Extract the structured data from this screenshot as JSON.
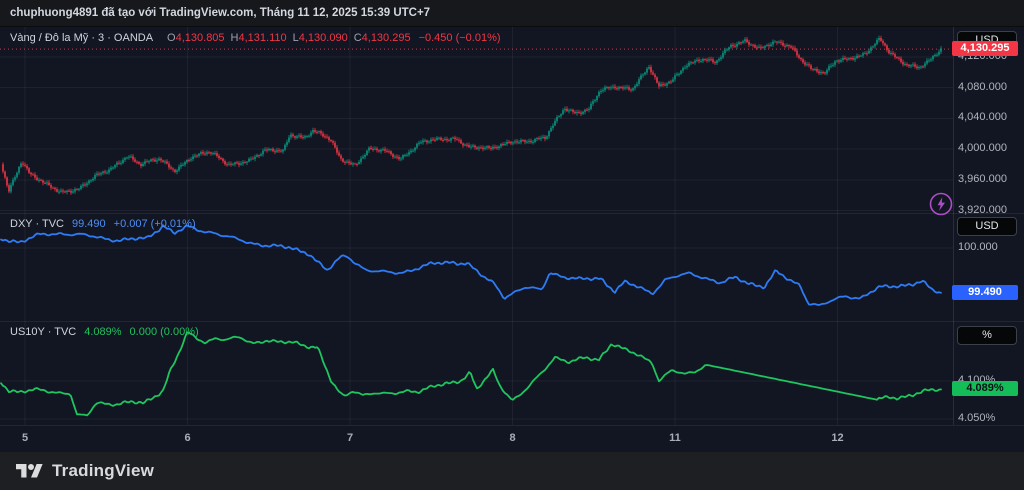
{
  "attribution": "chuphuong4891 đã tạo với TradingView.com, Tháng 11 12, 2025 15:39 UTC+7",
  "footer": {
    "brand": "TradingView"
  },
  "colors": {
    "candle_up": "#089981",
    "candle_down": "#f23645",
    "dxy_line": "#2e7bf6",
    "us10y_line": "#1fc55e",
    "grid": "rgba(255,255,255,0.055)",
    "gold_price_line": "#f23645"
  },
  "time_axis": {
    "ticks": [
      {
        "label": "5",
        "session": 0
      },
      {
        "label": "6",
        "session": 1
      },
      {
        "label": "7",
        "session": 2
      },
      {
        "label": "8",
        "session": 3
      },
      {
        "label": "11",
        "session": 4
      },
      {
        "label": "12",
        "session": 5
      }
    ]
  },
  "panels": [
    {
      "legend": {
        "title": "Vàng / Đô la Mỹ · 3 · OANDA",
        "ohlc": [
          {
            "k": "O",
            "v": "4,130.805"
          },
          {
            "k": "H",
            "v": "4,131.110"
          },
          {
            "k": "L",
            "v": "4,130.090"
          },
          {
            "k": "C",
            "v": "4,130.295"
          }
        ],
        "change": "−0.450 (−0.01%)"
      },
      "scale": {
        "unit_button": "USD",
        "ticks": [
          {
            "value": 4120,
            "label": "4,120.000"
          },
          {
            "value": 4080,
            "label": "4,080.000"
          },
          {
            "value": 4040,
            "label": "4,040.000"
          },
          {
            "value": 4000,
            "label": "4,000.000"
          },
          {
            "value": 3960,
            "label": "3,960.000"
          },
          {
            "value": 3920,
            "label": "3,920.000"
          }
        ],
        "badge": {
          "value": 4130.295,
          "label": "4,130.295",
          "bg": "#f23645",
          "fg": "#ffffff"
        }
      }
    },
    {
      "legend": {
        "title": "DXY · TVC",
        "value": "99.490",
        "change": "+0.007 (+0.01%)"
      },
      "scale": {
        "unit_button": "USD",
        "ticks": [
          {
            "value": 100,
            "label": "100.000"
          }
        ],
        "badge": {
          "value": 99.49,
          "label": "99.490",
          "bg": "#2962ff",
          "fg": "#ffffff"
        }
      }
    },
    {
      "legend": {
        "title": "US10Y · TVC",
        "value": "4.089%",
        "change": "0.000 (0.00%)"
      },
      "scale": {
        "unit_button": "%",
        "ticks": [
          {
            "value": 4.1,
            "label": "4.100%"
          },
          {
            "value": 4.05,
            "label": "4.050%"
          }
        ],
        "badge": {
          "value": 4.089,
          "label": "4.089%",
          "bg": "#14bd57",
          "fg": "#0c1018"
        }
      }
    }
  ],
  "chart_data": [
    {
      "type": "candlestick",
      "title": "Vàng / Đô la Mỹ · 3 · OANDA",
      "symbol": "XAU/USD (Vàng / Đô la Mỹ)",
      "exchange": "OANDA",
      "interval": "3",
      "unit": "USD",
      "last": {
        "open": 4130.805,
        "high": 4131.11,
        "low": 4130.09,
        "close": 4130.295,
        "change": -0.45,
        "change_pct": -0.01
      },
      "x_unit": "session index: 0=Nov 5, 1=Nov 6, 2=Nov 7, 3=Nov 8, 4=Nov 11, 5=Nov 12 (2025)",
      "ylim": [
        3917,
        4159
      ],
      "grid": true,
      "series": [
        [
          -0.15,
          3984
        ],
        [
          -0.1,
          3947
        ],
        [
          -0.02,
          3986
        ],
        [
          0.03,
          3967
        ],
        [
          0.12,
          3954
        ],
        [
          0.22,
          3945
        ],
        [
          0.34,
          3950
        ],
        [
          0.43,
          3963
        ],
        [
          0.52,
          3973
        ],
        [
          0.63,
          3993
        ],
        [
          0.71,
          3980
        ],
        [
          0.83,
          3986
        ],
        [
          0.92,
          3973
        ],
        [
          1.02,
          3990
        ],
        [
          1.14,
          3995
        ],
        [
          1.25,
          3981
        ],
        [
          1.39,
          3986
        ],
        [
          1.48,
          3997
        ],
        [
          1.59,
          3999
        ],
        [
          1.63,
          4021
        ],
        [
          1.72,
          4015
        ],
        [
          1.77,
          4023
        ],
        [
          1.88,
          4012
        ],
        [
          1.94,
          3989
        ],
        [
          2.03,
          3980
        ],
        [
          2.12,
          3999
        ],
        [
          2.22,
          3997
        ],
        [
          2.31,
          3989
        ],
        [
          2.43,
          4008
        ],
        [
          2.55,
          4012
        ],
        [
          2.65,
          4015
        ],
        [
          2.74,
          4003
        ],
        [
          2.86,
          3999
        ],
        [
          3.0,
          4012
        ],
        [
          3.11,
          4010
        ],
        [
          3.2,
          4013
        ],
        [
          3.26,
          4035
        ],
        [
          3.32,
          4055
        ],
        [
          3.39,
          4048
        ],
        [
          3.47,
          4051
        ],
        [
          3.54,
          4075
        ],
        [
          3.63,
          4082
        ],
        [
          3.74,
          4080
        ],
        [
          3.84,
          4106
        ],
        [
          3.9,
          4080
        ],
        [
          3.98,
          4090
        ],
        [
          4.06,
          4110
        ],
        [
          4.15,
          4116
        ],
        [
          4.25,
          4112
        ],
        [
          4.34,
          4136
        ],
        [
          4.43,
          4142
        ],
        [
          4.52,
          4129
        ],
        [
          4.62,
          4139
        ],
        [
          4.71,
          4136
        ],
        [
          4.77,
          4119
        ],
        [
          4.84,
          4103
        ],
        [
          4.92,
          4097
        ],
        [
          4.99,
          4116
        ],
        [
          5.08,
          4120
        ],
        [
          5.17,
          4123
        ],
        [
          5.26,
          4142
        ],
        [
          5.32,
          4126
        ],
        [
          5.42,
          4112
        ],
        [
          5.5,
          4106
        ],
        [
          5.57,
          4114
        ],
        [
          5.64,
          4130.3
        ]
      ]
    },
    {
      "type": "line",
      "title": "DXY · TVC",
      "symbol": "DXY",
      "exchange": "TVC",
      "unit": "USD",
      "last": 99.49,
      "change": 0.007,
      "change_pct": 0.01,
      "ylim": [
        99.17,
        100.4
      ],
      "grid": true,
      "series": [
        [
          -0.15,
          100.11
        ],
        [
          -0.03,
          100.07
        ],
        [
          0.09,
          100.15
        ],
        [
          0.22,
          100.17
        ],
        [
          0.34,
          100.15
        ],
        [
          0.46,
          100.12
        ],
        [
          0.58,
          100.09
        ],
        [
          0.75,
          100.11
        ],
        [
          0.85,
          100.26
        ],
        [
          0.92,
          100.17
        ],
        [
          1.0,
          100.24
        ],
        [
          1.08,
          100.2
        ],
        [
          1.16,
          100.18
        ],
        [
          1.26,
          100.12
        ],
        [
          1.38,
          100.06
        ],
        [
          1.51,
          100.03
        ],
        [
          1.63,
          100.0
        ],
        [
          1.75,
          99.94
        ],
        [
          1.86,
          99.74
        ],
        [
          1.94,
          99.89
        ],
        [
          1.98,
          99.91
        ],
        [
          2.1,
          99.75
        ],
        [
          2.22,
          99.72
        ],
        [
          2.31,
          99.72
        ],
        [
          2.43,
          99.78
        ],
        [
          2.51,
          99.82
        ],
        [
          2.62,
          99.84
        ],
        [
          2.72,
          99.83
        ],
        [
          2.82,
          99.67
        ],
        [
          2.89,
          99.59
        ],
        [
          2.95,
          99.44
        ],
        [
          3.0,
          99.49
        ],
        [
          3.08,
          99.55
        ],
        [
          3.18,
          99.52
        ],
        [
          3.23,
          99.73
        ],
        [
          3.32,
          99.67
        ],
        [
          3.42,
          99.64
        ],
        [
          3.54,
          99.66
        ],
        [
          3.63,
          99.51
        ],
        [
          3.69,
          99.61
        ],
        [
          3.78,
          99.55
        ],
        [
          3.86,
          99.49
        ],
        [
          3.94,
          99.64
        ],
        [
          4.02,
          99.68
        ],
        [
          4.09,
          99.71
        ],
        [
          4.18,
          99.67
        ],
        [
          4.28,
          99.6
        ],
        [
          4.37,
          99.66
        ],
        [
          4.46,
          99.6
        ],
        [
          4.55,
          99.56
        ],
        [
          4.62,
          99.73
        ],
        [
          4.7,
          99.64
        ],
        [
          4.77,
          99.58
        ],
        [
          4.82,
          99.38
        ],
        [
          4.89,
          99.34
        ],
        [
          4.97,
          99.4
        ],
        [
          5.05,
          99.46
        ],
        [
          5.14,
          99.43
        ],
        [
          5.26,
          99.55
        ],
        [
          5.35,
          99.57
        ],
        [
          5.46,
          99.59
        ],
        [
          5.52,
          99.62
        ],
        [
          5.58,
          99.52
        ],
        [
          5.64,
          99.49
        ]
      ]
    },
    {
      "type": "line",
      "title": "US10Y · TVC",
      "symbol": "US10Y",
      "exchange": "TVC",
      "unit": "%",
      "last": 4.089,
      "change": 0.0,
      "change_pct": 0.0,
      "ylim": [
        4.042,
        4.179
      ],
      "grid": true,
      "series": [
        [
          -0.15,
          4.099
        ],
        [
          -0.1,
          4.088
        ],
        [
          -0.03,
          4.086
        ],
        [
          0.06,
          4.088
        ],
        [
          0.15,
          4.086
        ],
        [
          0.28,
          4.084
        ],
        [
          0.32,
          4.055
        ],
        [
          0.38,
          4.053
        ],
        [
          0.44,
          4.071
        ],
        [
          0.57,
          4.07
        ],
        [
          0.65,
          4.072
        ],
        [
          0.73,
          4.07
        ],
        [
          0.81,
          4.082
        ],
        [
          0.85,
          4.088
        ],
        [
          0.89,
          4.112
        ],
        [
          0.95,
          4.138
        ],
        [
          1.0,
          4.163
        ],
        [
          1.05,
          4.157
        ],
        [
          1.11,
          4.151
        ],
        [
          1.17,
          4.157
        ],
        [
          1.24,
          4.154
        ],
        [
          1.32,
          4.157
        ],
        [
          1.4,
          4.15
        ],
        [
          1.49,
          4.154
        ],
        [
          1.57,
          4.15
        ],
        [
          1.65,
          4.151
        ],
        [
          1.72,
          4.147
        ],
        [
          1.8,
          4.145
        ],
        [
          1.83,
          4.128
        ],
        [
          1.88,
          4.101
        ],
        [
          1.92,
          4.088
        ],
        [
          1.96,
          4.079
        ],
        [
          2.02,
          4.088
        ],
        [
          2.08,
          4.082
        ],
        [
          2.14,
          4.084
        ],
        [
          2.2,
          4.082
        ],
        [
          2.28,
          4.084
        ],
        [
          2.36,
          4.088
        ],
        [
          2.43,
          4.086
        ],
        [
          2.51,
          4.092
        ],
        [
          2.6,
          4.097
        ],
        [
          2.68,
          4.101
        ],
        [
          2.74,
          4.111
        ],
        [
          2.78,
          4.088
        ],
        [
          2.83,
          4.101
        ],
        [
          2.88,
          4.114
        ],
        [
          2.92,
          4.095
        ],
        [
          3.0,
          4.075
        ],
        [
          3.05,
          4.082
        ],
        [
          3.1,
          4.092
        ],
        [
          3.17,
          4.108
        ],
        [
          3.26,
          4.132
        ],
        [
          3.35,
          4.125
        ],
        [
          3.45,
          4.13
        ],
        [
          3.53,
          4.128
        ],
        [
          3.61,
          4.15
        ],
        [
          3.69,
          4.141
        ],
        [
          3.77,
          4.134
        ],
        [
          3.86,
          4.125
        ],
        [
          3.9,
          4.101
        ],
        [
          3.98,
          4.114
        ],
        [
          4.06,
          4.108
        ],
        [
          4.12,
          4.112
        ],
        [
          4.18,
          4.121
        ],
        [
          4.2,
          4.121
        ],
        [
          5.25,
          4.075
        ],
        [
          5.32,
          4.079
        ],
        [
          5.37,
          4.078
        ],
        [
          5.46,
          4.082
        ],
        [
          5.54,
          4.086
        ],
        [
          5.6,
          4.088
        ],
        [
          5.64,
          4.089
        ]
      ]
    }
  ]
}
